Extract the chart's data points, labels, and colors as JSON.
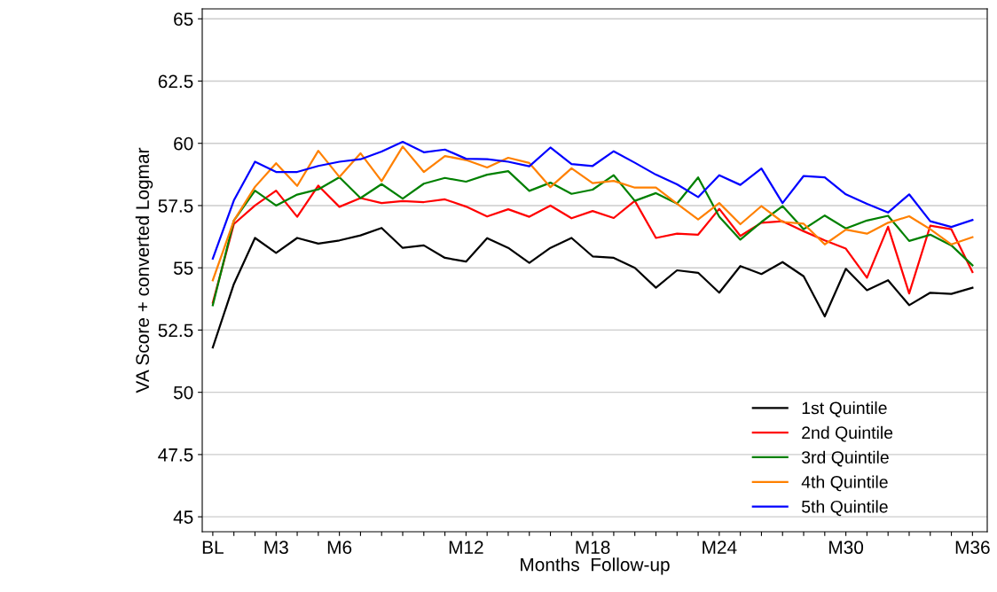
{
  "chart_data": {
    "type": "line",
    "xlabel": "Months  Follow-up",
    "ylabel": "VA Score + converted Logmar",
    "categories": [
      "BL",
      null,
      null,
      "M3",
      null,
      null,
      "M6",
      null,
      null,
      null,
      null,
      null,
      "M12",
      null,
      null,
      null,
      null,
      null,
      "M18",
      null,
      null,
      null,
      null,
      null,
      "M24",
      null,
      null,
      null,
      null,
      null,
      "M30",
      null,
      null,
      null,
      null,
      null,
      "M36"
    ],
    "ylim": [
      44.4,
      65.4
    ],
    "yticks": [
      45,
      47.5,
      50,
      52.5,
      55,
      57.5,
      60,
      62.5,
      65
    ],
    "grid": "y",
    "legend": "bottom right",
    "marker": "none",
    "line_style": "solid",
    "series": [
      {
        "name": "1st Quintile",
        "color": "#000000",
        "values": [
          51.8,
          54.35,
          56.2,
          55.6,
          56.2,
          55.97,
          56.1,
          56.3,
          56.6,
          55.8,
          55.9,
          55.4,
          55.25,
          56.19,
          55.8,
          55.2,
          55.8,
          56.2,
          55.46,
          55.4,
          55.0,
          54.2,
          54.9,
          54.8,
          54.0,
          55.07,
          54.75,
          55.23,
          54.66,
          53.05,
          54.96,
          54.1,
          54.5,
          53.5,
          54.0,
          53.95,
          54.2
        ]
      },
      {
        "name": "2nd Quintile",
        "color": "#ff0000",
        "values": [
          53.6,
          56.76,
          57.5,
          58.1,
          57.05,
          58.3,
          57.45,
          57.8,
          57.6,
          57.68,
          57.64,
          57.75,
          57.46,
          57.06,
          57.35,
          57.05,
          57.5,
          56.99,
          57.28,
          57.0,
          57.69,
          56.2,
          56.37,
          56.33,
          57.37,
          56.28,
          56.81,
          56.87,
          56.47,
          56.1,
          55.77,
          54.6,
          56.65,
          53.97,
          56.69,
          56.55,
          54.83
        ]
      },
      {
        "name": "3rd Quintile",
        "color": "#008000",
        "values": [
          53.5,
          56.9,
          58.1,
          57.5,
          57.94,
          58.15,
          58.64,
          57.8,
          58.36,
          57.78,
          58.38,
          58.61,
          58.46,
          58.74,
          58.88,
          58.09,
          58.42,
          57.97,
          58.14,
          58.72,
          57.69,
          58.0,
          57.58,
          58.63,
          57.05,
          56.13,
          56.84,
          57.48,
          56.55,
          57.1,
          56.58,
          56.9,
          57.09,
          56.08,
          56.33,
          55.9,
          55.1
        ]
      },
      {
        "name": "4th Quintile",
        "color": "#ff8000",
        "values": [
          54.5,
          56.9,
          58.25,
          59.2,
          58.29,
          59.7,
          58.65,
          59.6,
          58.48,
          59.87,
          58.85,
          59.49,
          59.33,
          59.03,
          59.42,
          59.21,
          58.24,
          59.0,
          58.4,
          58.49,
          58.22,
          58.22,
          57.57,
          56.94,
          57.6,
          56.75,
          57.48,
          56.84,
          56.77,
          55.94,
          56.53,
          56.37,
          56.81,
          57.07,
          56.55,
          55.94,
          56.23
        ]
      },
      {
        "name": "5th Quintile",
        "color": "#0000ff",
        "values": [
          55.37,
          57.71,
          59.26,
          58.85,
          58.85,
          59.09,
          59.26,
          59.36,
          59.67,
          60.06,
          59.64,
          59.75,
          59.38,
          59.36,
          59.26,
          59.08,
          59.83,
          59.17,
          59.09,
          59.68,
          59.22,
          58.74,
          58.35,
          57.84,
          58.72,
          58.33,
          58.99,
          57.6,
          58.69,
          58.63,
          57.95,
          57.57,
          57.22,
          57.95,
          56.87,
          56.64,
          56.92
        ]
      }
    ]
  }
}
